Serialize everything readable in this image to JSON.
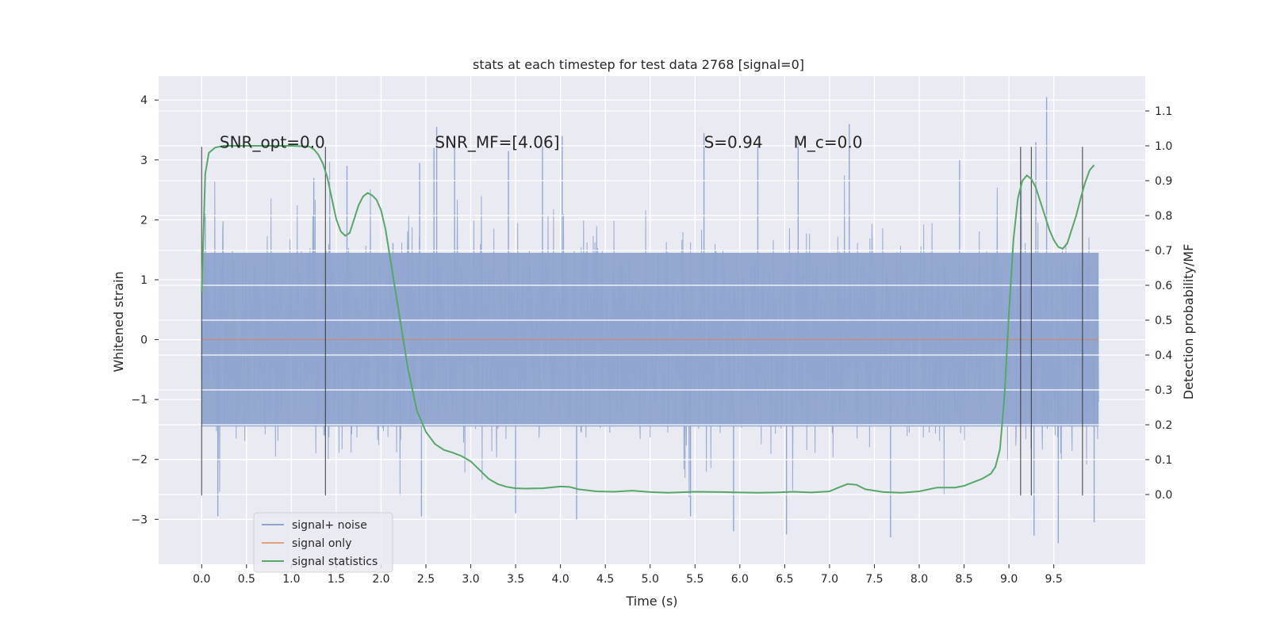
{
  "chart_data": {
    "type": "line",
    "title": "stats at each timestep for test data 2768 [signal=0]",
    "xlabel": "Time (s)",
    "ylabel": "Whitened strain",
    "y2label": "Detection probability/MF",
    "xlim": [
      -0.48,
      10.52
    ],
    "ylim": [
      -3.75,
      4.4
    ],
    "y2lim": [
      -0.2,
      1.2
    ],
    "x_ticks": [
      0.0,
      0.5,
      1.0,
      1.5,
      2.0,
      2.5,
      3.0,
      3.5,
      4.0,
      4.5,
      5.0,
      5.5,
      6.0,
      6.5,
      7.0,
      7.5,
      8.0,
      8.5,
      9.0,
      9.5
    ],
    "x_tick_labels": [
      "0.0",
      "0.5",
      "1.0",
      "1.5",
      "2.0",
      "2.5",
      "3.0",
      "3.5",
      "4.0",
      "4.5",
      "5.0",
      "5.5",
      "6.0",
      "6.5",
      "7.0",
      "7.5",
      "8.0",
      "8.5",
      "9.0",
      "9.5"
    ],
    "y_ticks": [
      -3,
      -2,
      -1,
      0,
      1,
      2,
      3,
      4
    ],
    "y_tick_labels": [
      "−3",
      "−2",
      "−1",
      "0",
      "1",
      "2",
      "3",
      "4"
    ],
    "y2_ticks": [
      0.0,
      0.1,
      0.2,
      0.3,
      0.4,
      0.5,
      0.6,
      0.7,
      0.8,
      0.9,
      1.0,
      1.1
    ],
    "y2_tick_labels": [
      "0.0",
      "0.1",
      "0.2",
      "0.3",
      "0.4",
      "0.5",
      "0.6",
      "0.7",
      "0.8",
      "0.9",
      "1.0",
      "1.1"
    ],
    "grid": true,
    "legend_position": "lower-left",
    "annotations": [
      {
        "text": "SNR_opt=0.0",
        "x": 0.2,
        "y": 3.2
      },
      {
        "text": "SNR_MF=[4.06]",
        "x": 2.6,
        "y": 3.2
      },
      {
        "text": "S=0.94",
        "x": 5.6,
        "y": 3.2
      },
      {
        "text": "M_c=0.0",
        "x": 6.6,
        "y": 3.2
      }
    ],
    "vertical_markers_x": [
      0.0,
      1.38,
      9.13,
      9.25,
      9.82
    ],
    "vertical_marker_range": [
      -2.6,
      3.22
    ],
    "series": [
      {
        "name": "signal+ noise",
        "color": "#8fa4cf",
        "axis": "left",
        "x_range": [
          0.0,
          10.0
        ],
        "envelope_upper": 1.45,
        "envelope_lower": -1.45,
        "noise_std": 0.78,
        "visible_peaks": [
          {
            "x": 0.04,
            "y": 2.1
          },
          {
            "x": 1.25,
            "y": 2.7
          },
          {
            "x": 1.62,
            "y": 2.9
          },
          {
            "x": 2.43,
            "y": 2.95
          },
          {
            "x": 2.59,
            "y": 3.2
          },
          {
            "x": 2.62,
            "y": 3.55
          },
          {
            "x": 2.82,
            "y": 3.4
          },
          {
            "x": 3.42,
            "y": 3.15
          },
          {
            "x": 3.8,
            "y": 3.25
          },
          {
            "x": 4.02,
            "y": 3.4
          },
          {
            "x": 5.6,
            "y": 3.45
          },
          {
            "x": 6.2,
            "y": 3.25
          },
          {
            "x": 6.65,
            "y": 3.3
          },
          {
            "x": 7.22,
            "y": 3.6
          },
          {
            "x": 8.45,
            "y": 3.0
          },
          {
            "x": 9.42,
            "y": 4.05
          },
          {
            "x": 9.3,
            "y": 3.3
          },
          {
            "x": 0.18,
            "y": -2.95
          },
          {
            "x": 2.45,
            "y": -2.95
          },
          {
            "x": 3.5,
            "y": -2.9
          },
          {
            "x": 4.18,
            "y": -3.0
          },
          {
            "x": 5.45,
            "y": -2.95
          },
          {
            "x": 5.93,
            "y": -3.2
          },
          {
            "x": 6.52,
            "y": -3.25
          },
          {
            "x": 7.68,
            "y": -3.3
          },
          {
            "x": 9.28,
            "y": -3.27
          },
          {
            "x": 9.55,
            "y": -3.4
          },
          {
            "x": 9.95,
            "y": -3.05
          }
        ]
      },
      {
        "name": "signal only",
        "color": "#dd8452",
        "axis": "left",
        "x": [
          0.0,
          10.0
        ],
        "values": [
          0.0,
          0.0
        ]
      },
      {
        "name": "signal statistics",
        "color": "#55a868",
        "axis": "right",
        "x": [
          0.0,
          0.04,
          0.08,
          0.15,
          0.25,
          0.4,
          0.6,
          0.8,
          1.0,
          1.1,
          1.2,
          1.25,
          1.3,
          1.35,
          1.4,
          1.45,
          1.5,
          1.55,
          1.6,
          1.65,
          1.7,
          1.75,
          1.8,
          1.85,
          1.9,
          1.95,
          2.0,
          2.05,
          2.1,
          2.2,
          2.3,
          2.4,
          2.5,
          2.6,
          2.7,
          2.8,
          2.9,
          3.0,
          3.1,
          3.2,
          3.3,
          3.4,
          3.5,
          3.6,
          3.8,
          4.0,
          4.1,
          4.2,
          4.4,
          4.6,
          4.8,
          5.0,
          5.2,
          5.5,
          5.8,
          6.0,
          6.2,
          6.4,
          6.6,
          6.8,
          7.0,
          7.1,
          7.2,
          7.3,
          7.4,
          7.6,
          7.8,
          8.0,
          8.2,
          8.4,
          8.5,
          8.6,
          8.7,
          8.8,
          8.85,
          8.9,
          8.95,
          9.0,
          9.05,
          9.1,
          9.15,
          9.2,
          9.25,
          9.3,
          9.35,
          9.4,
          9.45,
          9.5,
          9.55,
          9.6,
          9.65,
          9.7,
          9.75,
          9.8,
          9.85,
          9.9,
          9.95
        ],
        "values": [
          0.58,
          0.92,
          0.98,
          0.995,
          1.0,
          1.0,
          1.0,
          1.0,
          1.0,
          0.999,
          0.998,
          0.99,
          0.975,
          0.95,
          0.91,
          0.85,
          0.79,
          0.755,
          0.742,
          0.75,
          0.79,
          0.83,
          0.855,
          0.865,
          0.858,
          0.845,
          0.815,
          0.76,
          0.68,
          0.52,
          0.36,
          0.24,
          0.18,
          0.145,
          0.128,
          0.12,
          0.11,
          0.095,
          0.07,
          0.045,
          0.03,
          0.022,
          0.018,
          0.017,
          0.018,
          0.023,
          0.022,
          0.015,
          0.009,
          0.008,
          0.011,
          0.007,
          0.005,
          0.008,
          0.007,
          0.006,
          0.005,
          0.006,
          0.008,
          0.006,
          0.009,
          0.02,
          0.03,
          0.028,
          0.015,
          0.007,
          0.005,
          0.009,
          0.02,
          0.02,
          0.025,
          0.035,
          0.045,
          0.06,
          0.08,
          0.13,
          0.28,
          0.52,
          0.73,
          0.85,
          0.9,
          0.915,
          0.905,
          0.88,
          0.84,
          0.8,
          0.76,
          0.73,
          0.71,
          0.705,
          0.72,
          0.76,
          0.8,
          0.85,
          0.895,
          0.93,
          0.945
        ]
      }
    ]
  }
}
